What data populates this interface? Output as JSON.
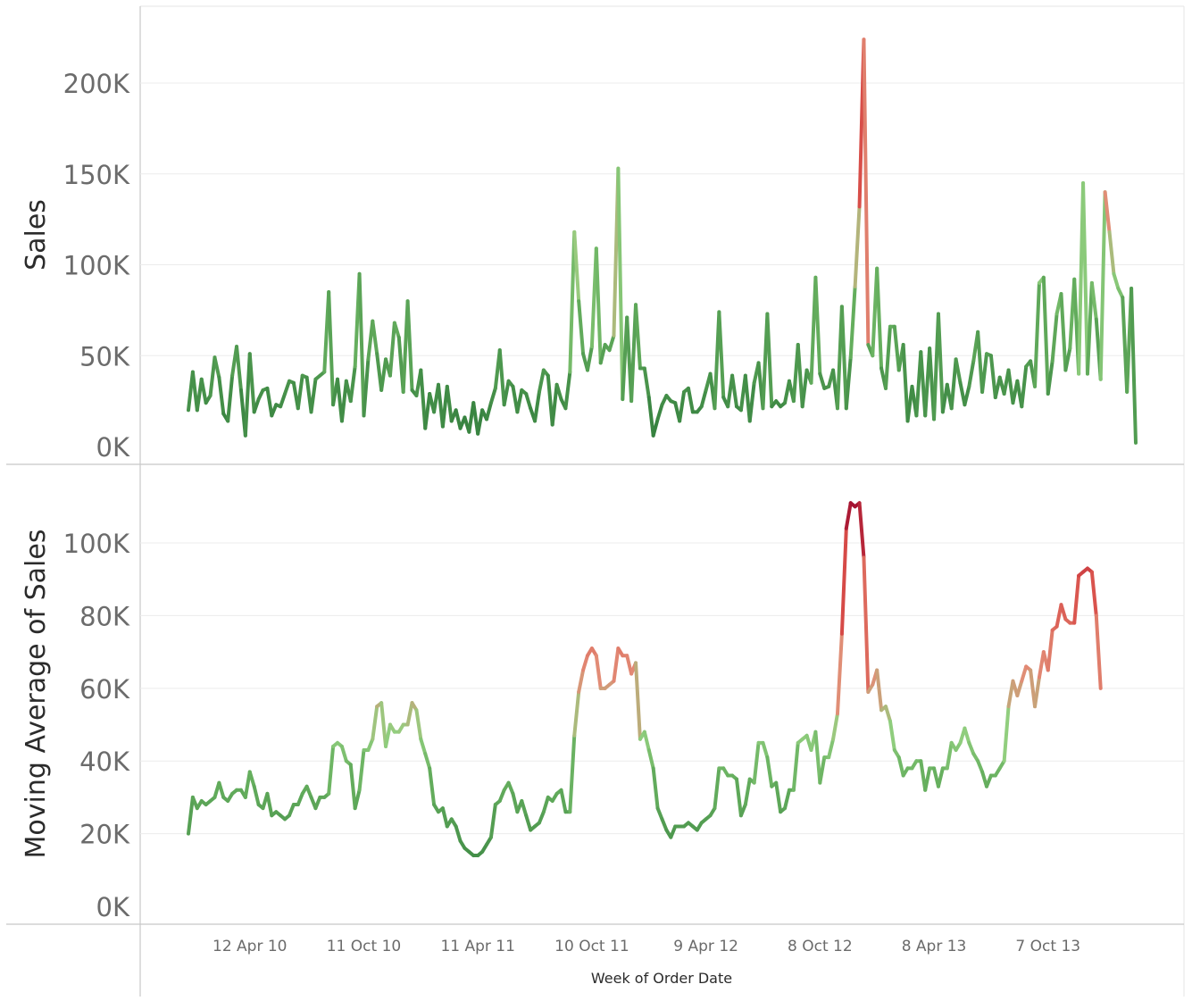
{
  "chart_data": [
    {
      "type": "line",
      "panel": "top",
      "ylabel": "Sales",
      "xlabel": "Week of Order Date",
      "ylim": [
        0,
        230000
      ],
      "y_ticks": [
        0,
        50000,
        100000,
        150000,
        200000
      ],
      "y_tick_labels": [
        "0K",
        "50K",
        "100K",
        "150K",
        "200K"
      ],
      "x_ticks": [
        "2010-04-12",
        "2010-10-11",
        "2011-04-11",
        "2011-10-10",
        "2012-04-09",
        "2012-10-08",
        "2013-04-08",
        "2013-10-07"
      ],
      "x_tick_labels": [
        "12 Apr 10",
        "11 Oct 10",
        "11 Apr 11",
        "10 Oct 11",
        "9 Apr 12",
        "8 Oct 12",
        "8 Apr 13",
        "7 Oct 13"
      ],
      "grid": true,
      "color_scale": "green (low) to red (high) by value",
      "x_start": "2010-01-04",
      "x_step_days": 7,
      "series": [
        {
          "values": [
            20000,
            41000,
            20000,
            37000,
            24000,
            28000,
            49000,
            38000,
            18000,
            14000,
            39000,
            55000,
            31000,
            6000,
            51000,
            19000,
            26000,
            31000,
            32000,
            17000,
            23000,
            22000,
            29000,
            36000,
            35000,
            21000,
            39000,
            38000,
            19000,
            37000,
            39000,
            41000,
            85000,
            23000,
            37000,
            14000,
            36000,
            25000,
            44000,
            95000,
            17000,
            48000,
            69000,
            51000,
            31000,
            48000,
            39000,
            68000,
            60000,
            30000,
            80000,
            31000,
            28000,
            42000,
            10000,
            29000,
            19000,
            34000,
            11000,
            33000,
            14000,
            20000,
            10000,
            16000,
            8000,
            24000,
            7000,
            20000,
            15000,
            24000,
            32000,
            53000,
            23000,
            36000,
            33000,
            19000,
            31000,
            29000,
            21000,
            14000,
            30000,
            42000,
            39000,
            12000,
            34000,
            26000,
            21000,
            41000,
            118000,
            80000,
            51000,
            42000,
            55000,
            109000,
            46000,
            56000,
            53000,
            61000,
            153000,
            26000,
            71000,
            25000,
            78000,
            43000,
            43000,
            27000,
            6000,
            15000,
            23000,
            28000,
            25000,
            24000,
            14000,
            30000,
            32000,
            19000,
            19000,
            22000,
            31000,
            40000,
            21000,
            74000,
            27000,
            22000,
            39000,
            22000,
            20000,
            39000,
            14000,
            35000,
            46000,
            21000,
            73000,
            22000,
            25000,
            22000,
            24000,
            36000,
            25000,
            56000,
            22000,
            42000,
            35000,
            93000,
            40000,
            32000,
            33000,
            42000,
            21000,
            77000,
            21000,
            49000,
            88000,
            132000,
            224000,
            56000,
            50000,
            98000,
            43000,
            32000,
            66000,
            66000,
            42000,
            56000,
            14000,
            33000,
            17000,
            52000,
            17000,
            54000,
            15000,
            73000,
            19000,
            34000,
            21000,
            48000,
            35000,
            23000,
            33000,
            47000,
            63000,
            30000,
            51000,
            50000,
            27000,
            38000,
            29000,
            42000,
            24000,
            36000,
            22000,
            44000,
            47000,
            33000,
            90000,
            93000,
            29000,
            47000,
            73000,
            84000,
            42000,
            54000,
            92000,
            40000,
            145000,
            40000,
            90000,
            70000,
            37000,
            140000,
            118000,
            95000,
            87000,
            82000,
            30000,
            87000,
            2000
          ]
        }
      ]
    },
    {
      "type": "line",
      "panel": "bottom",
      "ylabel": "Moving Average of Sales",
      "xlabel": "Week of Order Date",
      "ylim": [
        0,
        115000
      ],
      "y_ticks": [
        0,
        20000,
        40000,
        60000,
        80000,
        100000
      ],
      "y_tick_labels": [
        "0K",
        "20K",
        "40K",
        "60K",
        "80K",
        "100K"
      ],
      "x_ticks": [
        "2010-04-12",
        "2010-10-11",
        "2011-04-11",
        "2011-10-10",
        "2012-04-09",
        "2012-10-08",
        "2013-04-08",
        "2013-10-07"
      ],
      "x_tick_labels": [
        "12 Apr 10",
        "11 Oct 10",
        "11 Apr 11",
        "10 Oct 11",
        "9 Apr 12",
        "8 Oct 12",
        "8 Apr 13",
        "7 Oct 13"
      ],
      "grid": true,
      "color_scale": "green (low) to red (high) by value",
      "x_start": "2010-01-04",
      "x_step_days": 7,
      "series": [
        {
          "values": [
            20000,
            30000,
            27000,
            29000,
            28000,
            29000,
            30000,
            34000,
            30000,
            29000,
            31000,
            32000,
            32000,
            30000,
            37000,
            33000,
            28000,
            27000,
            31000,
            25000,
            26000,
            25000,
            24000,
            25000,
            28000,
            28000,
            31000,
            33000,
            30000,
            27000,
            30000,
            30000,
            31000,
            44000,
            45000,
            44000,
            40000,
            39000,
            27000,
            32000,
            43000,
            43000,
            46000,
            55000,
            56000,
            44000,
            50000,
            48000,
            48000,
            50000,
            50000,
            56000,
            54000,
            46000,
            42000,
            38000,
            28000,
            26000,
            27000,
            22000,
            24000,
            22000,
            18000,
            16000,
            15000,
            14000,
            14000,
            15000,
            17000,
            19000,
            28000,
            29000,
            32000,
            34000,
            31000,
            26000,
            29000,
            25000,
            21000,
            22000,
            23000,
            26000,
            30000,
            29000,
            31000,
            32000,
            26000,
            26000,
            47000,
            59000,
            65000,
            69000,
            71000,
            69000,
            60000,
            60000,
            61000,
            62000,
            71000,
            69000,
            69000,
            64000,
            67000,
            46000,
            48000,
            43000,
            38000,
            27000,
            24000,
            21000,
            19000,
            22000,
            22000,
            22000,
            23000,
            22000,
            21000,
            23000,
            24000,
            25000,
            27000,
            38000,
            38000,
            36000,
            36000,
            35000,
            25000,
            28000,
            35000,
            34000,
            45000,
            45000,
            41000,
            33000,
            34000,
            26000,
            27000,
            32000,
            32000,
            45000,
            46000,
            47000,
            43000,
            48000,
            34000,
            41000,
            41000,
            46000,
            53000,
            75000,
            104000,
            111000,
            110000,
            111000,
            96000,
            59000,
            61000,
            65000,
            54000,
            55000,
            51000,
            43000,
            41000,
            36000,
            38000,
            38000,
            40000,
            40000,
            32000,
            38000,
            38000,
            33000,
            38000,
            38000,
            45000,
            43000,
            45000,
            49000,
            45000,
            42000,
            40000,
            37000,
            33000,
            36000,
            36000,
            38000,
            40000,
            55000,
            62000,
            58000,
            62000,
            66000,
            65000,
            55000,
            63000,
            70000,
            65000,
            76000,
            77000,
            83000,
            79000,
            78000,
            78000,
            91000,
            92000,
            93000,
            92000,
            80000,
            60000
          ]
        }
      ]
    }
  ]
}
